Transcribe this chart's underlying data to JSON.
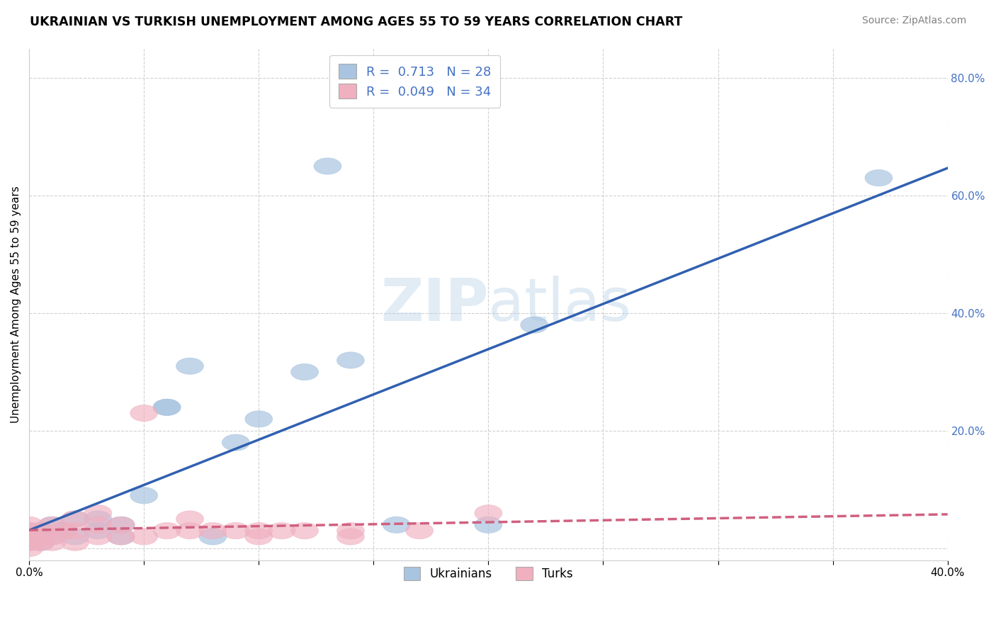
{
  "title": "UKRAINIAN VS TURKISH UNEMPLOYMENT AMONG AGES 55 TO 59 YEARS CORRELATION CHART",
  "source": "Source: ZipAtlas.com",
  "ylabel": "Unemployment Among Ages 55 to 59 years",
  "xlim": [
    0.0,
    0.4
  ],
  "ylim": [
    -0.02,
    0.85
  ],
  "xticks": [
    0.0,
    0.05,
    0.1,
    0.15,
    0.2,
    0.25,
    0.3,
    0.35,
    0.4
  ],
  "yticks": [
    0.0,
    0.2,
    0.4,
    0.6,
    0.8
  ],
  "background_color": "#ffffff",
  "grid_color": "#cccccc",
  "watermark_zip": "ZIP",
  "watermark_atlas": "atlas",
  "legend_labels": [
    "R =  0.713   N = 28",
    "R =  0.049   N = 34"
  ],
  "ukrainian_color": "#a8c4e0",
  "turkish_color": "#f0b0c0",
  "ukrainian_line_color": "#3060b0",
  "turkish_line_color": "#d06080",
  "tick_label_color": "#4472c4",
  "ukrainians_x": [
    0.0,
    0.0,
    0.0,
    0.005,
    0.005,
    0.01,
    0.01,
    0.015,
    0.02,
    0.02,
    0.03,
    0.03,
    0.04,
    0.04,
    0.05,
    0.06,
    0.06,
    0.07,
    0.08,
    0.09,
    0.1,
    0.12,
    0.13,
    0.14,
    0.16,
    0.2,
    0.22,
    0.37
  ],
  "ukrainians_y": [
    0.01,
    0.02,
    0.03,
    0.01,
    0.03,
    0.02,
    0.04,
    0.03,
    0.02,
    0.05,
    0.03,
    0.05,
    0.02,
    0.04,
    0.09,
    0.24,
    0.24,
    0.31,
    0.02,
    0.18,
    0.22,
    0.3,
    0.65,
    0.32,
    0.04,
    0.04,
    0.38,
    0.63
  ],
  "turks_x": [
    0.0,
    0.0,
    0.0,
    0.0,
    0.0,
    0.005,
    0.005,
    0.01,
    0.01,
    0.01,
    0.015,
    0.02,
    0.02,
    0.02,
    0.03,
    0.03,
    0.03,
    0.04,
    0.04,
    0.05,
    0.05,
    0.06,
    0.07,
    0.07,
    0.08,
    0.09,
    0.1,
    0.1,
    0.11,
    0.12,
    0.14,
    0.14,
    0.17,
    0.2
  ],
  "turks_y": [
    0.0,
    0.01,
    0.02,
    0.03,
    0.04,
    0.01,
    0.03,
    0.01,
    0.02,
    0.04,
    0.03,
    0.01,
    0.03,
    0.05,
    0.02,
    0.04,
    0.06,
    0.02,
    0.04,
    0.02,
    0.23,
    0.03,
    0.03,
    0.05,
    0.03,
    0.03,
    0.02,
    0.03,
    0.03,
    0.03,
    0.02,
    0.03,
    0.03,
    0.06
  ]
}
